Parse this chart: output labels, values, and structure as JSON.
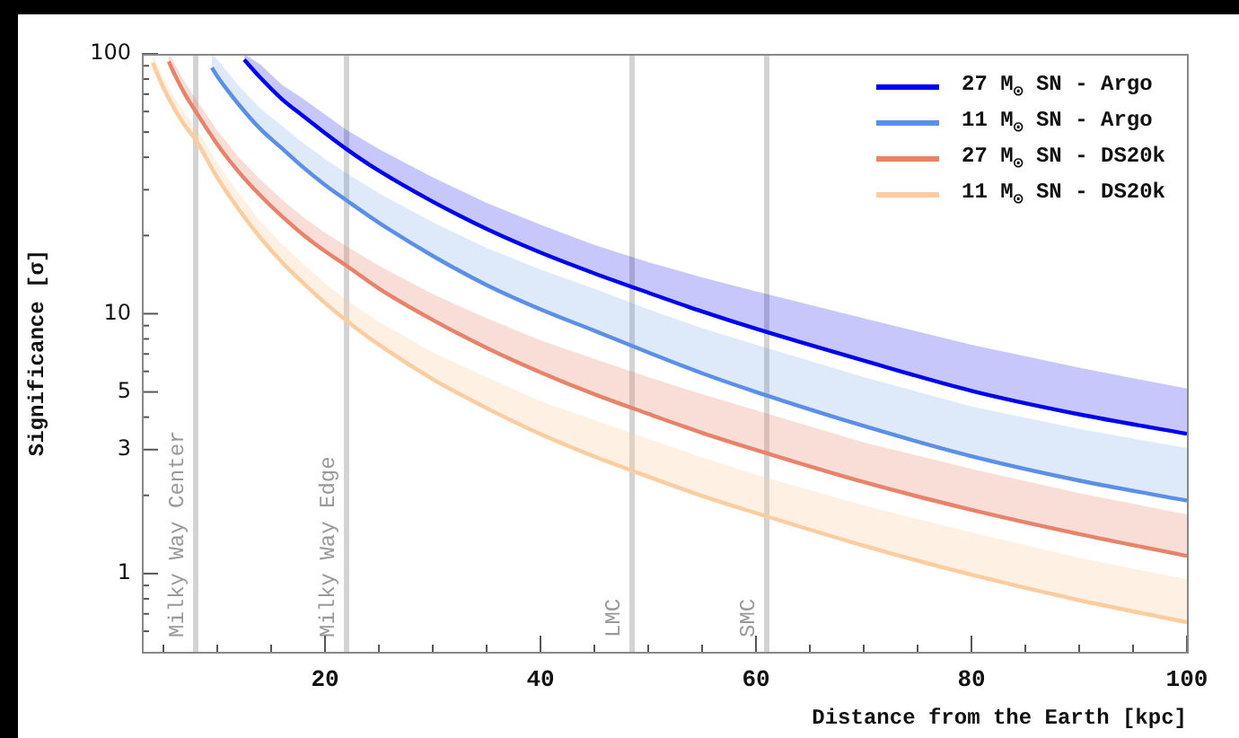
{
  "chart_data": {
    "type": "line",
    "xlabel": "Distance from the Earth [kpc]",
    "ylabel": "Significance [σ]",
    "log": "y",
    "grid": false,
    "legend": "top right",
    "marker": "none",
    "line_style": "solid",
    "xlim": [
      3,
      100
    ],
    "xticks": [
      {
        "value": 5,
        "label": null
      },
      {
        "value": 10,
        "label": null
      },
      {
        "value": 15,
        "label": null
      },
      20,
      {
        "value": 25,
        "label": null
      },
      {
        "value": 30,
        "label": null
      },
      {
        "value": 35,
        "label": null
      },
      40,
      {
        "value": 45,
        "label": null
      },
      {
        "value": 50,
        "label": null
      },
      {
        "value": 55,
        "label": null
      },
      60,
      {
        "value": 65,
        "label": null
      },
      {
        "value": 70,
        "label": null
      },
      {
        "value": 75,
        "label": null
      },
      80,
      {
        "value": 85,
        "label": null
      },
      {
        "value": 90,
        "label": null
      },
      {
        "value": 95,
        "label": null
      },
      100
    ],
    "ylim": [
      0.5,
      100
    ],
    "yticks": [
      {
        "value": 0.6,
        "label": null
      },
      {
        "value": 0.7,
        "label": null
      },
      {
        "value": 0.8,
        "label": null
      },
      {
        "value": 0.9,
        "label": null
      },
      1,
      {
        "value": 2,
        "label": null
      },
      3,
      {
        "value": 4,
        "label": null
      },
      5,
      {
        "value": 6,
        "label": null
      },
      {
        "value": 7,
        "label": null
      },
      {
        "value": 8,
        "label": null
      },
      {
        "value": 9,
        "label": null
      },
      10,
      {
        "value": 20,
        "label": null
      },
      {
        "value": 30,
        "label": null
      },
      {
        "value": 40,
        "label": null
      },
      {
        "value": 50,
        "label": null
      },
      {
        "value": 60,
        "label": null
      },
      {
        "value": 70,
        "label": null
      },
      {
        "value": 80,
        "label": null
      },
      {
        "value": 90,
        "label": null
      },
      100
    ],
    "ref_lines": [
      {
        "axis": "x",
        "value": 8,
        "label": "Milky Way Center",
        "color": "#d3d3d3"
      },
      {
        "axis": "x",
        "value": 22,
        "label": "Milky Way Edge",
        "color": "#d3d3d3"
      },
      {
        "axis": "x",
        "value": 48.5,
        "label": "LMC",
        "color": "#d3d3d3"
      },
      {
        "axis": "x",
        "value": 61,
        "label": "SMC",
        "color": "#d3d3d3"
      }
    ],
    "series": [
      {
        "name": "27 M$_{⊙}$ SN - Argo",
        "color": "#0000ee",
        "x": [
          12.5,
          14,
          16,
          18,
          20,
          22,
          25,
          30,
          35,
          40,
          45,
          50,
          55,
          60,
          70,
          80,
          90,
          100
        ],
        "values": [
          95,
          81,
          67,
          57.5,
          49.6,
          43,
          35.5,
          27,
          21.2,
          17.2,
          14.3,
          12.05,
          10.2,
          8.75,
          6.6,
          5.05,
          4.1,
          3.45
        ],
        "lower": [
          95,
          81,
          67,
          57.5,
          49.6,
          43,
          35.5,
          27,
          21.2,
          17.2,
          14.3,
          12.05,
          10.2,
          8.75,
          6.6,
          5.05,
          4.1,
          3.45
        ],
        "upper": [
          100,
          91,
          76,
          67,
          58.5,
          51,
          43,
          33.5,
          26.7,
          22,
          18.4,
          15.8,
          13.8,
          12.2,
          9.6,
          7.6,
          6.2,
          5.15
        ]
      },
      {
        "name": "11 M$_{⊙}$ SN - Argo",
        "color": "#5b8fe8",
        "x": [
          9.5,
          10,
          12,
          14,
          16,
          18,
          20,
          22,
          25,
          30,
          35,
          40,
          45,
          50,
          55,
          60,
          70,
          80,
          90,
          100
        ],
        "values": [
          88.5,
          82,
          63.8,
          51.4,
          43.3,
          36.5,
          31.3,
          27.3,
          22.4,
          16.7,
          12.9,
          10.4,
          8.6,
          7.1,
          5.9,
          5,
          3.7,
          2.83,
          2.28,
          1.91
        ],
        "lower": [
          88.5,
          82,
          63.8,
          51.4,
          43.3,
          36.5,
          31.3,
          27.3,
          22.4,
          16.7,
          12.9,
          10.4,
          8.6,
          7.1,
          5.9,
          5,
          3.7,
          2.83,
          2.28,
          1.91
        ],
        "upper": [
          100,
          95,
          75.3,
          61.7,
          52.8,
          45.3,
          39.4,
          34.7,
          29.1,
          22.5,
          17.9,
          14.8,
          12.5,
          10.4,
          8.8,
          7.6,
          5.7,
          4.4,
          3.6,
          3.04
        ]
      },
      {
        "name": "27 M$_{⊙}$ SN - DS20k",
        "color": "#e8836a",
        "x": [
          5.5,
          6,
          7,
          8,
          10,
          12,
          14,
          16,
          18,
          20,
          22,
          25,
          30,
          35,
          40,
          45,
          50,
          55,
          60,
          70,
          80,
          90,
          100
        ],
        "values": [
          93.5,
          84,
          70,
          60,
          44.9,
          35.1,
          28.5,
          23.7,
          20.1,
          17.4,
          15.3,
          12.5,
          9.46,
          7.39,
          5.95,
          4.9,
          4.12,
          3.48,
          2.99,
          2.25,
          1.76,
          1.42,
          1.17
        ],
        "lower": [
          93.5,
          84,
          70,
          60,
          44.9,
          35.1,
          28.5,
          23.7,
          20.1,
          17.4,
          15.3,
          12.5,
          9.46,
          7.39,
          5.95,
          4.9,
          4.12,
          3.48,
          2.99,
          2.25,
          1.76,
          1.42,
          1.17
        ],
        "upper": [
          100,
          92.4,
          77.7,
          67.2,
          50.7,
          40,
          32.8,
          27.5,
          23.5,
          20.5,
          18.2,
          15.3,
          11.9,
          9.6,
          7.9,
          6.7,
          5.7,
          4.9,
          4.25,
          3.2,
          2.53,
          2.04,
          1.69
        ]
      },
      {
        "name": "11 M$_{⊙}$ SN - DS20k",
        "color": "#fdcca0",
        "x": [
          4,
          5,
          6,
          7,
          8,
          10,
          12,
          14,
          16,
          18,
          20,
          22,
          25,
          30,
          35,
          40,
          45,
          50,
          55,
          60,
          70,
          80,
          90,
          100
        ],
        "values": [
          92.5,
          74,
          61.7,
          52.9,
          46.7,
          33.4,
          25.2,
          19.6,
          15.8,
          13.1,
          11,
          9.4,
          7.6,
          5.6,
          4.33,
          3.44,
          2.82,
          2.36,
          1.99,
          1.71,
          1.28,
          0.99,
          0.79,
          0.65
        ],
        "lower": [
          92.5,
          74,
          61.7,
          52.9,
          46.7,
          33.4,
          25.2,
          19.6,
          15.8,
          13.1,
          11,
          9.4,
          7.6,
          5.6,
          4.33,
          3.44,
          2.82,
          2.36,
          1.99,
          1.71,
          1.28,
          0.99,
          0.79,
          0.65
        ],
        "upper": [
          100,
          80.7,
          67.9,
          58.7,
          52.3,
          38.1,
          29,
          22.7,
          18.5,
          15.5,
          13.1,
          11.3,
          9.3,
          7.1,
          5.7,
          4.6,
          3.9,
          3.3,
          2.8,
          2.4,
          1.83,
          1.44,
          1.15,
          0.95
        ]
      }
    ]
  }
}
